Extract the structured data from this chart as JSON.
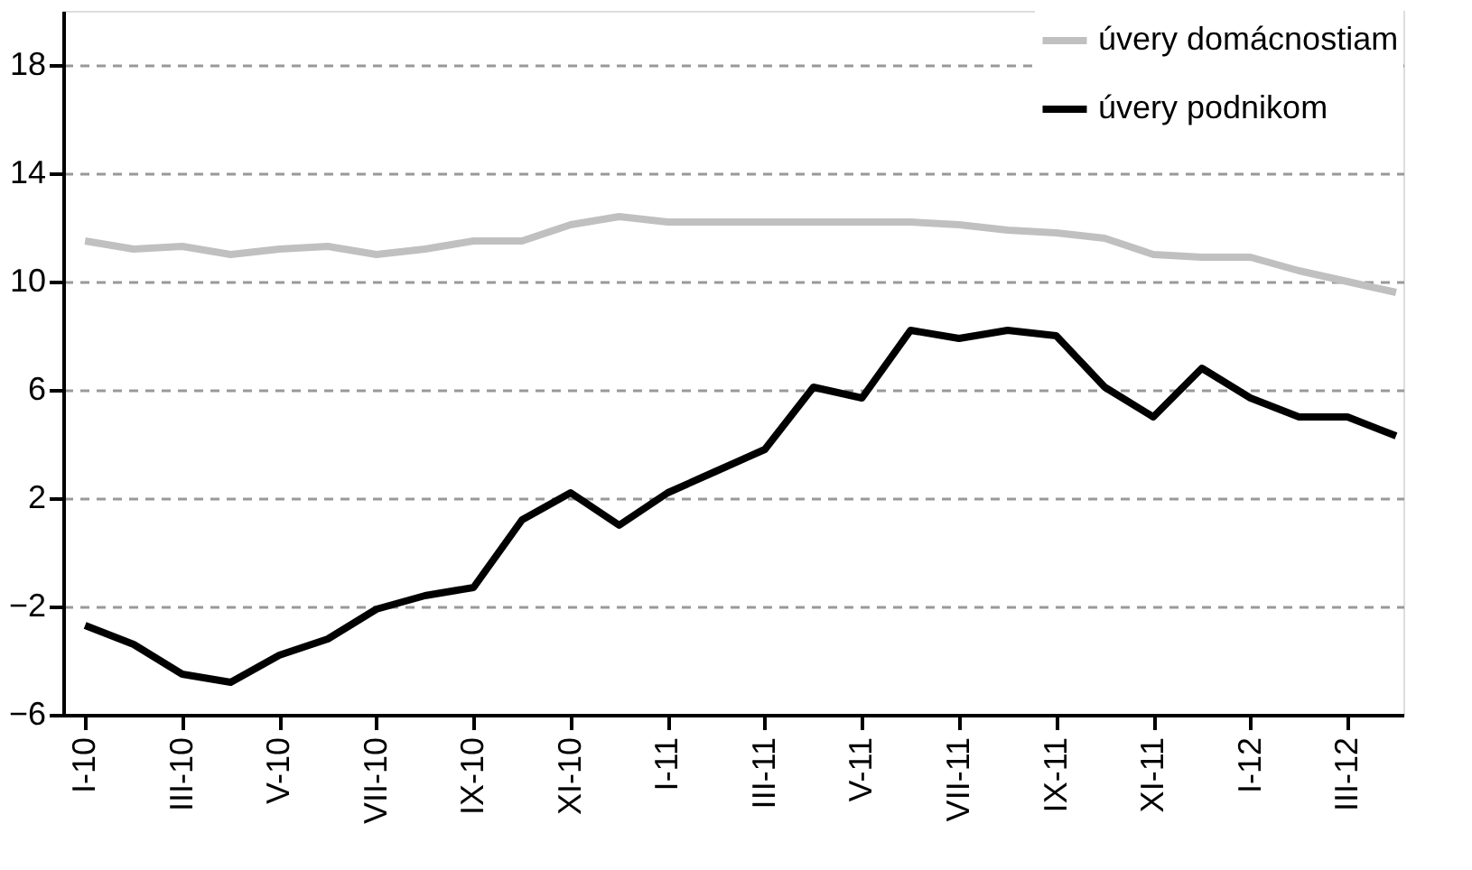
{
  "chart_data": {
    "type": "line",
    "categories": [
      "I-10",
      null,
      "III-10",
      null,
      "V-10",
      null,
      "VII-10",
      null,
      "IX-10",
      null,
      "XI-10",
      null,
      "I-11",
      null,
      "III-11",
      null,
      "V-11",
      null,
      "VII-11",
      null,
      "IX-11",
      null,
      "XI-11",
      null,
      "I-12",
      null,
      "III-12",
      null
    ],
    "series": [
      {
        "name": "úvery domácnostiam",
        "color": "#c0c0c0",
        "values": [
          11.5,
          11.2,
          11.3,
          11.0,
          11.2,
          11.3,
          11.0,
          11.2,
          11.5,
          11.5,
          12.1,
          12.4,
          12.2,
          12.2,
          12.2,
          12.2,
          12.2,
          12.2,
          12.1,
          11.9,
          11.8,
          11.6,
          11.0,
          10.9,
          10.9,
          10.4,
          10.0,
          9.6
        ]
      },
      {
        "name": "úvery podnikom",
        "color": "#000000",
        "values": [
          -2.7,
          -3.4,
          -4.5,
          -4.8,
          -3.8,
          -3.2,
          -2.1,
          -1.6,
          -1.3,
          1.2,
          2.2,
          1.0,
          2.2,
          3.0,
          3.8,
          6.1,
          5.7,
          8.2,
          7.9,
          8.2,
          8.0,
          6.1,
          5.0,
          6.8,
          5.7,
          5.0,
          5.0,
          4.3
        ]
      }
    ],
    "ylim": [
      -6,
      20
    ],
    "yticks": [
      -6,
      -2,
      2,
      6,
      10,
      14,
      18
    ],
    "grid": "y",
    "legend": "top right",
    "marker": "none",
    "line_style": "solid"
  }
}
